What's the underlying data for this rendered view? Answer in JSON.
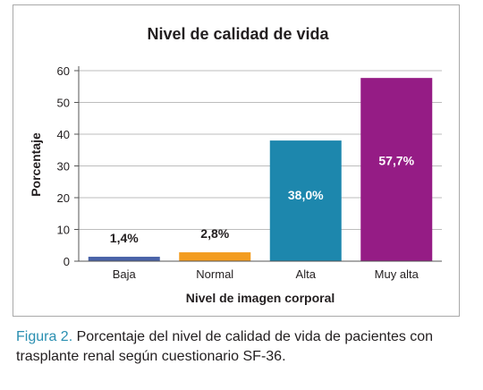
{
  "chart_data": {
    "type": "bar",
    "title": "Nivel de calidad de vida",
    "xlabel": "Nivel de imagen corporal",
    "ylabel": "Porcentaje",
    "ylim": [
      0,
      60
    ],
    "yticks": [
      0,
      10,
      20,
      30,
      40,
      50,
      60
    ],
    "grid": true,
    "categories": [
      "Baja",
      "Normal",
      "Alta",
      "Muy alta"
    ],
    "values": [
      1.4,
      2.8,
      38.0,
      57.7
    ],
    "data_labels": [
      "1,4%",
      "2,8%",
      "38,0%",
      "57,7%"
    ],
    "colors": [
      "#4a63a8",
      "#f39c1f",
      "#1d87ad",
      "#951c85"
    ]
  },
  "caption": {
    "label": "Figura 2.",
    "text": " Porcentaje del nivel de calidad de vida de pacientes con trasplante renal según cuestionario SF-36."
  }
}
